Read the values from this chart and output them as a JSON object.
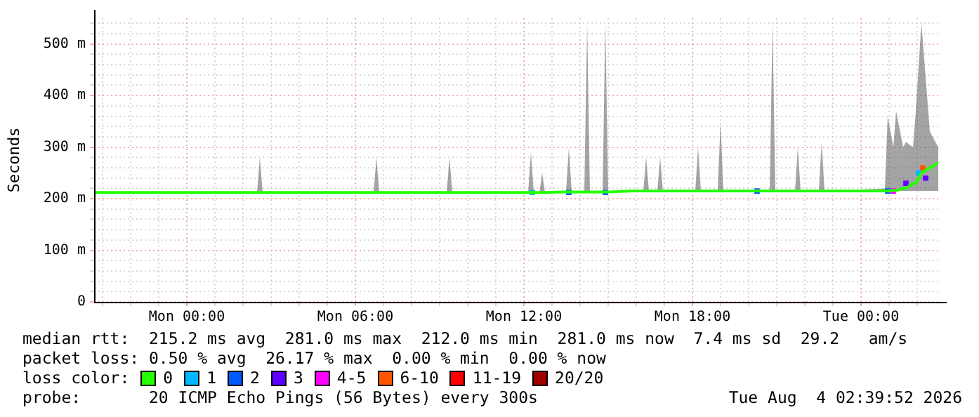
{
  "chart_data": {
    "type": "line",
    "ylabel": "Seconds",
    "legend_title": "loss color:",
    "legend": "bottom",
    "grid": true,
    "xlim": [
      "2026-08-02T20:42",
      "2026-08-04T02:45"
    ],
    "ylim": [
      0,
      550
    ],
    "xticks": [
      {
        "value": "2026-08-02T21:00",
        "label": null
      },
      {
        "value": "2026-08-02T22:00",
        "label": null
      },
      {
        "value": "2026-08-02T23:00",
        "label": null
      },
      {
        "value": "2026-08-03T00:00",
        "label": "Mon 00:00"
      },
      {
        "value": "2026-08-03T01:00",
        "label": null
      },
      {
        "value": "2026-08-03T02:00",
        "label": null
      },
      {
        "value": "2026-08-03T03:00",
        "label": null
      },
      {
        "value": "2026-08-03T04:00",
        "label": null
      },
      {
        "value": "2026-08-03T05:00",
        "label": null
      },
      {
        "value": "2026-08-03T06:00",
        "label": "Mon 06:00"
      },
      {
        "value": "2026-08-03T07:00",
        "label": null
      },
      {
        "value": "2026-08-03T08:00",
        "label": null
      },
      {
        "value": "2026-08-03T09:00",
        "label": null
      },
      {
        "value": "2026-08-03T10:00",
        "label": null
      },
      {
        "value": "2026-08-03T11:00",
        "label": null
      },
      {
        "value": "2026-08-03T12:00",
        "label": "Mon 12:00"
      },
      {
        "value": "2026-08-03T13:00",
        "label": null
      },
      {
        "value": "2026-08-03T14:00",
        "label": null
      },
      {
        "value": "2026-08-03T15:00",
        "label": null
      },
      {
        "value": "2026-08-03T16:00",
        "label": null
      },
      {
        "value": "2026-08-03T17:00",
        "label": null
      },
      {
        "value": "2026-08-03T18:00",
        "label": "Mon 18:00"
      },
      {
        "value": "2026-08-03T19:00",
        "label": null
      },
      {
        "value": "2026-08-03T20:00",
        "label": null
      },
      {
        "value": "2026-08-03T21:00",
        "label": null
      },
      {
        "value": "2026-08-03T22:00",
        "label": null
      },
      {
        "value": "2026-08-03T23:00",
        "label": null
      },
      {
        "value": "2026-08-04T00:00",
        "label": "Tue 00:00"
      },
      {
        "value": "2026-08-04T01:00",
        "label": null
      },
      {
        "value": "2026-08-04T02:00",
        "label": null
      }
    ],
    "yticks": [
      {
        "value": 0,
        "label": "0"
      },
      {
        "value": 20,
        "label": null
      },
      {
        "value": 40,
        "label": null
      },
      {
        "value": 60,
        "label": null
      },
      {
        "value": 80,
        "label": null
      },
      {
        "value": 100,
        "label": "100 m"
      },
      {
        "value": 120,
        "label": null
      },
      {
        "value": 140,
        "label": null
      },
      {
        "value": 160,
        "label": null
      },
      {
        "value": 180,
        "label": null
      },
      {
        "value": 200,
        "label": "200 m"
      },
      {
        "value": 220,
        "label": null
      },
      {
        "value": 240,
        "label": null
      },
      {
        "value": 260,
        "label": null
      },
      {
        "value": 280,
        "label": null
      },
      {
        "value": 300,
        "label": "300 m"
      },
      {
        "value": 320,
        "label": null
      },
      {
        "value": 340,
        "label": null
      },
      {
        "value": 360,
        "label": null
      },
      {
        "value": 380,
        "label": null
      },
      {
        "value": 400,
        "label": "400 m"
      },
      {
        "value": 420,
        "label": null
      },
      {
        "value": 440,
        "label": null
      },
      {
        "value": 460,
        "label": null
      },
      {
        "value": 480,
        "label": null
      },
      {
        "value": 500,
        "label": "500 m"
      },
      {
        "value": 520,
        "label": null
      },
      {
        "value": 540,
        "label": null
      }
    ],
    "series": [
      {
        "name": "0",
        "color": "#26ff00",
        "x": [
          "2026-08-02T20:42",
          "2026-08-03T02:30",
          "2026-08-03T02:36",
          "2026-08-03T02:42",
          "2026-08-03T06:39",
          "2026-08-03T06:45",
          "2026-08-03T06:51",
          "2026-08-03T09:15",
          "2026-08-03T09:21",
          "2026-08-03T09:27",
          "2026-08-03T12:09",
          "2026-08-03T12:15",
          "2026-08-03T12:21",
          "2026-08-03T12:33",
          "2026-08-03T12:39",
          "2026-08-03T12:45",
          "2026-08-03T13:21",
          "2026-08-03T13:30",
          "2026-08-03T13:36",
          "2026-08-03T13:42",
          "2026-08-03T14:09",
          "2026-08-03T14:15",
          "2026-08-03T14:21",
          "2026-08-03T14:48",
          "2026-08-03T14:54",
          "2026-08-03T15:00",
          "2026-08-03T15:51",
          "2026-08-03T16:15",
          "2026-08-03T16:21",
          "2026-08-03T16:27",
          "2026-08-03T16:45",
          "2026-08-03T16:51",
          "2026-08-03T16:57",
          "2026-08-03T18:06",
          "2026-08-03T18:12",
          "2026-08-03T18:18",
          "2026-08-03T18:54",
          "2026-08-03T19:00",
          "2026-08-03T19:06",
          "2026-08-03T20:45",
          "2026-08-03T20:51",
          "2026-08-03T20:57",
          "2026-08-03T21:39",
          "2026-08-03T21:45",
          "2026-08-03T21:51",
          "2026-08-03T22:30",
          "2026-08-03T22:36",
          "2026-08-03T22:42",
          "2026-08-04T00:51",
          "2026-08-04T00:57",
          "2026-08-04T01:09",
          "2026-08-04T01:15",
          "2026-08-04T01:30",
          "2026-08-04T01:36",
          "2026-08-04T01:51",
          "2026-08-04T01:57",
          "2026-08-04T02:09",
          "2026-08-04T02:27",
          "2026-08-04T02:45"
        ],
        "values": [
          212,
          212,
          212,
          212,
          212,
          212,
          212,
          212,
          212,
          212,
          212,
          212,
          212,
          212,
          212,
          212,
          213,
          213,
          213,
          213,
          213,
          213,
          213,
          213,
          213,
          213,
          215,
          215,
          215,
          215,
          215,
          215,
          215,
          215,
          215,
          215,
          215,
          215,
          215,
          215,
          215,
          215,
          215,
          215,
          215,
          215,
          215,
          215,
          215,
          215,
          216,
          216,
          220,
          220,
          230,
          230,
          250,
          260,
          270
        ],
        "lower": [
          212,
          212,
          212,
          212,
          212,
          212,
          212,
          212,
          212,
          212,
          212,
          212,
          212,
          212,
          212,
          212,
          213,
          213,
          213,
          213,
          213,
          213,
          213,
          213,
          213,
          213,
          215,
          215,
          215,
          215,
          215,
          215,
          215,
          215,
          215,
          215,
          215,
          215,
          215,
          215,
          215,
          215,
          215,
          215,
          215,
          215,
          215,
          215,
          215,
          215,
          215,
          215,
          215,
          215,
          215,
          215,
          215,
          215,
          215
        ],
        "upper": [
          212,
          212,
          280,
          212,
          212,
          280,
          212,
          212,
          280,
          212,
          212,
          290,
          212,
          212,
          250,
          212,
          213,
          213,
          300,
          213,
          213,
          540,
          213,
          213,
          540,
          213,
          215,
          215,
          280,
          215,
          215,
          280,
          215,
          215,
          300,
          215,
          215,
          350,
          215,
          215,
          540,
          215,
          215,
          300,
          215,
          215,
          310,
          215,
          220,
          360,
          300,
          370,
          300,
          310,
          300,
          370,
          540,
          330,
          300
        ]
      },
      {
        "name": "1",
        "color": "#00b8ff",
        "type": "scatter",
        "marker": "square",
        "x": [
          "2026-08-03T12:18",
          "2026-08-04T02:03"
        ],
        "values": [
          212,
          250
        ]
      },
      {
        "name": "2",
        "color": "#0059ff",
        "type": "scatter",
        "marker": "square",
        "x": [
          "2026-08-03T13:36",
          "2026-08-03T14:54",
          "2026-08-03T20:18",
          "2026-08-04T00:57"
        ],
        "values": [
          212,
          212,
          215,
          215
        ]
      },
      {
        "name": "3",
        "color": "#5e00ff",
        "type": "scatter",
        "marker": "square",
        "x": [
          "2026-08-04T01:36",
          "2026-08-04T02:18"
        ],
        "values": [
          230,
          240
        ]
      },
      {
        "name": "4-5",
        "color": "#ff00ff",
        "type": "scatter",
        "marker": "square",
        "x": [
          "2026-08-04T01:09"
        ],
        "values": [
          215
        ]
      },
      {
        "name": "6-10",
        "color": "#ff5500",
        "type": "scatter",
        "marker": "square",
        "x": [
          "2026-08-04T02:12"
        ],
        "values": [
          260
        ]
      },
      {
        "name": "11-19",
        "color": "#ff0000",
        "type": "scatter",
        "marker": "square"
      },
      {
        "name": "20/20",
        "color": "#a10000",
        "type": "scatter",
        "marker": "square"
      }
    ],
    "annotations": [
      "median rtt:  215.2 ms avg  281.0 ms max  212.0 ms min  281.0 ms now  7.4 ms sd  29.2   am/s",
      "packet loss: 0.50 % avg  26.17 % max  0.00 % min  0.00 % now",
      "probe:       20 ICMP Echo Pings (56 Bytes) every 300s",
      "Tue Aug  4 02:39:52 2026"
    ]
  }
}
